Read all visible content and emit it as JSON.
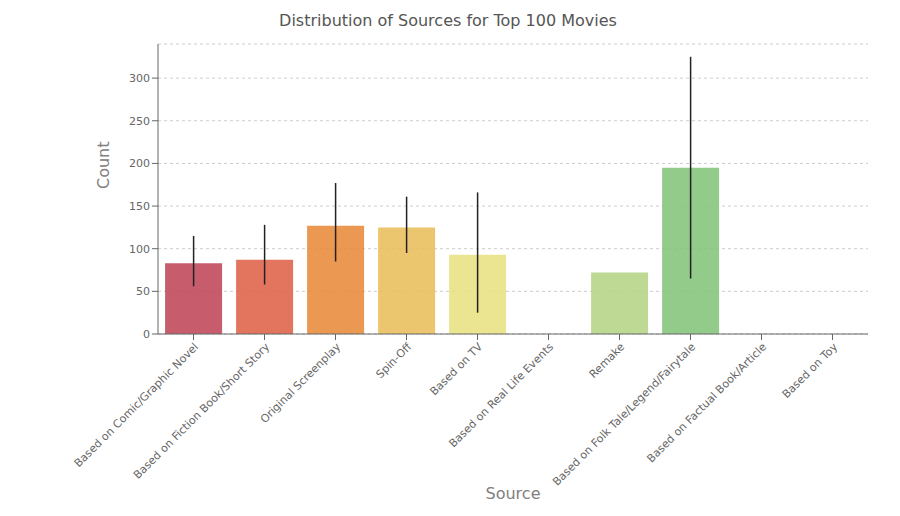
{
  "chart_data": {
    "type": "bar",
    "title": "Distribution of Sources for Top 100 Movies",
    "xlabel": "Source",
    "ylabel": "Count",
    "categories": [
      "Based on Comic/Graphic Novel",
      "Based on Fiction Book/Short Story",
      "Original Screenplay",
      "Spin-Off",
      "Based on TV",
      "Based on Real Life Events",
      "Remake",
      "Based on Folk Tale/Legend/Fairytale",
      "Based on Factual Book/Article",
      "Based on Toy"
    ],
    "values": [
      83,
      87,
      127,
      125,
      93,
      0,
      72,
      195,
      0,
      0
    ],
    "errors_low": [
      27,
      29,
      42,
      30,
      68,
      0,
      0,
      130,
      0,
      0
    ],
    "errors_high": [
      32,
      41,
      50,
      36,
      73,
      0,
      0,
      130,
      0,
      0
    ],
    "colors": [
      "#bf4659",
      "#df6248",
      "#e88a3a",
      "#e8be5a",
      "#e8e082",
      null,
      "#b4d484",
      "#84c47a",
      null,
      null
    ],
    "ylim": [
      0,
      340
    ],
    "yticks": [
      0,
      50,
      100,
      150,
      200,
      250,
      300
    ],
    "grid": true
  }
}
